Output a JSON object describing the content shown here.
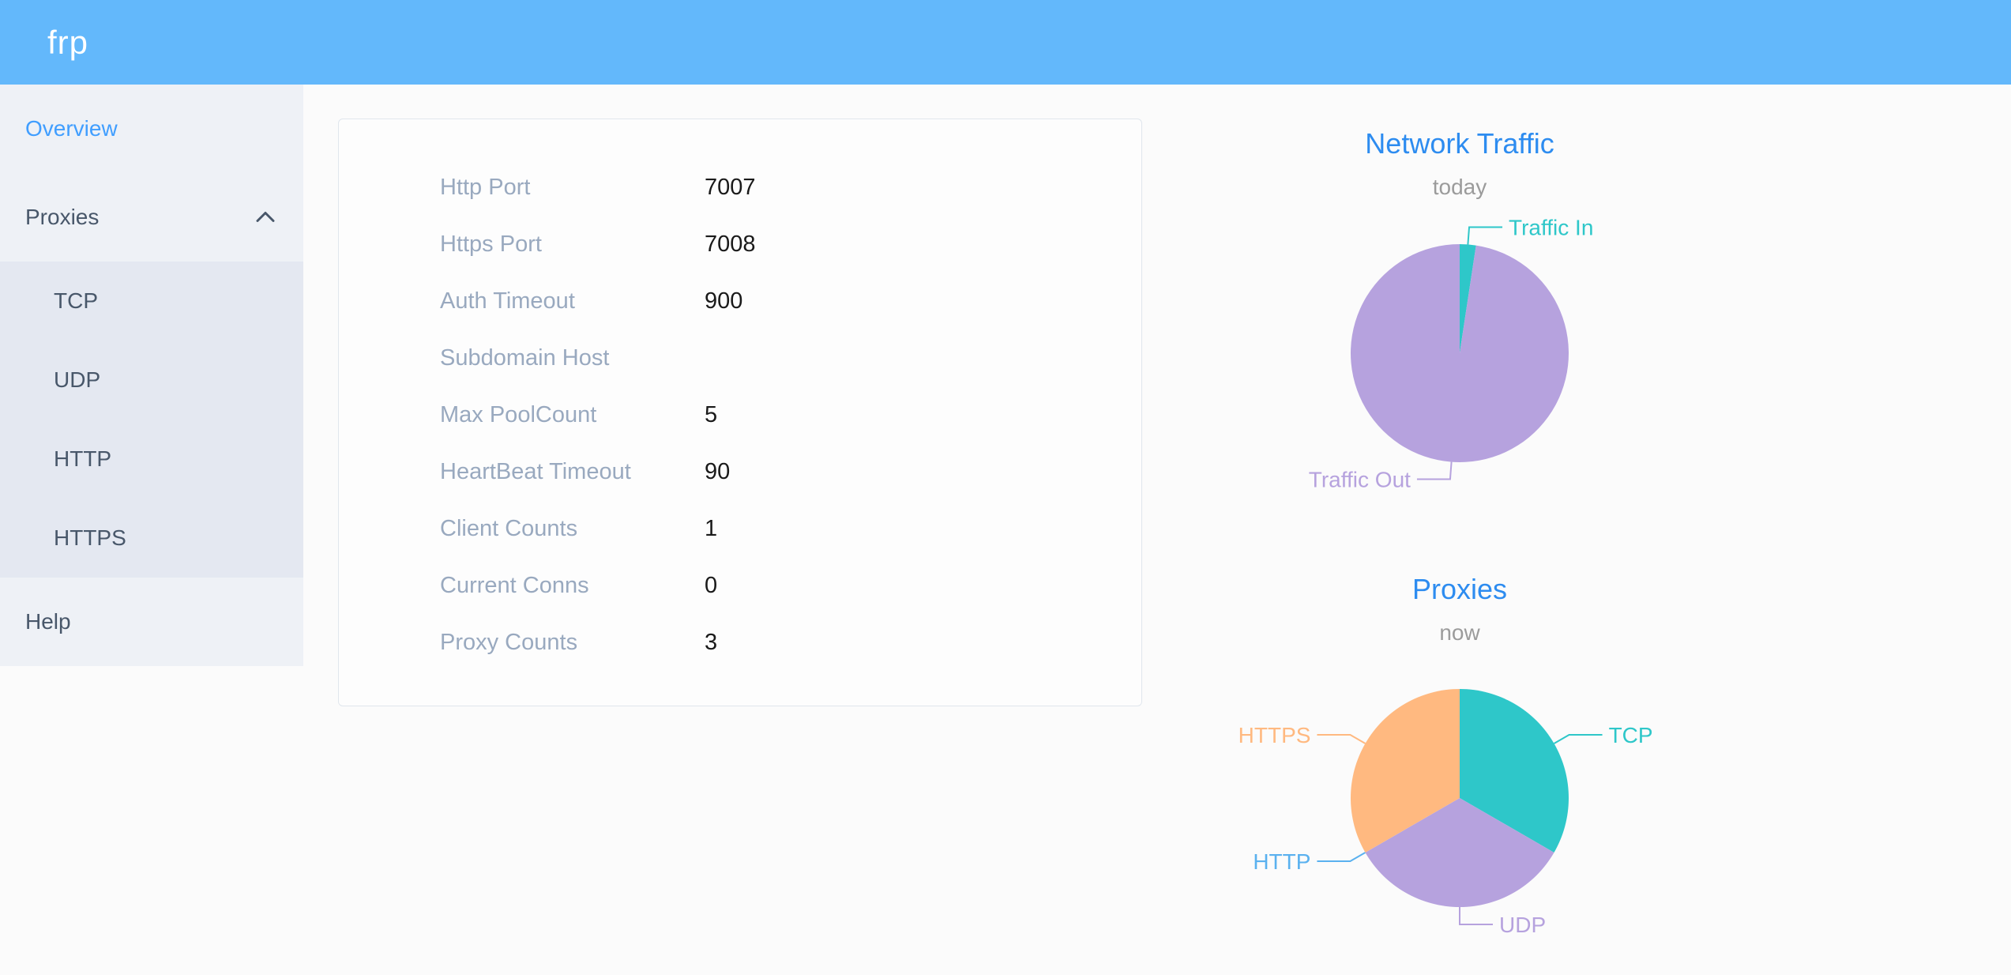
{
  "header": {
    "logo": "frp"
  },
  "sidebar": {
    "items": [
      {
        "label": "Overview",
        "active": true
      },
      {
        "label": "Proxies",
        "expanded": true,
        "chevron_icon": "chevron-up",
        "children": [
          "TCP",
          "UDP",
          "HTTP",
          "HTTPS"
        ]
      },
      {
        "label": "Help",
        "active": false
      }
    ]
  },
  "overview_card": {
    "rows": [
      {
        "label": "Http Port",
        "value": "7007"
      },
      {
        "label": "Https Port",
        "value": "7008"
      },
      {
        "label": "Auth Timeout",
        "value": "900"
      },
      {
        "label": "Subdomain Host",
        "value": ""
      },
      {
        "label": "Max PoolCount",
        "value": "5"
      },
      {
        "label": "HeartBeat Timeout",
        "value": "90"
      },
      {
        "label": "Client Counts",
        "value": "1"
      },
      {
        "label": "Current Conns",
        "value": "0"
      },
      {
        "label": "Proxy Counts",
        "value": "3"
      }
    ]
  },
  "chart_data": [
    {
      "type": "pie",
      "title": "Network Traffic",
      "subtitle": "today",
      "legend_position": "outside-callout",
      "slices": [
        {
          "label": "Traffic In",
          "value": 2.4,
          "unit": "percent",
          "color": "#2ec7c9"
        },
        {
          "label": "Traffic Out",
          "value": 97.6,
          "unit": "percent",
          "color": "#b6a2de"
        }
      ]
    },
    {
      "type": "pie",
      "title": "Proxies",
      "subtitle": "now",
      "legend_position": "outside-callout",
      "slices": [
        {
          "label": "TCP",
          "value": 1,
          "unit": "count",
          "color": "#2ec7c9"
        },
        {
          "label": "UDP",
          "value": 1,
          "unit": "count",
          "color": "#b6a2de"
        },
        {
          "label": "HTTP",
          "value": 0,
          "unit": "count",
          "color": "#5ab1ef"
        },
        {
          "label": "HTTPS",
          "value": 1,
          "unit": "count",
          "color": "#ffb980"
        }
      ]
    }
  ],
  "colors": {
    "header_bg": "#63b8fb",
    "sidebar_bg": "#eef1f6",
    "submenu_bg": "#e4e8f1",
    "menu_text": "#48576a",
    "menu_active": "#409eff",
    "chart_title_blue": "#2d8cf0",
    "subtitle_gray": "#9b9b9b",
    "config_label_gray": "#99a9bf",
    "config_value_black": "#1a1a1a"
  }
}
